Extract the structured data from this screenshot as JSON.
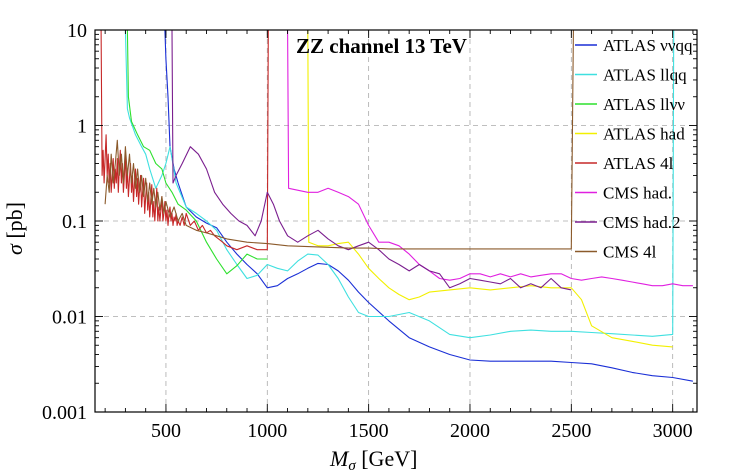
{
  "chart_data": {
    "type": "line",
    "title": "ZZ channel 13 TeV",
    "xlabel": "Mσ [GeV]",
    "xlabel_main": "M",
    "xlabel_sub": "σ",
    "xlabel_unit": " [GeV]",
    "ylabel": "σ [pb]",
    "ylabel_sym": "σ",
    "ylabel_unit": " [pb]",
    "xlim": [
      150,
      3120
    ],
    "ylim": [
      0.001,
      10
    ],
    "yscale": "log",
    "grid": true,
    "legend_position": "right",
    "xticks": [
      500,
      1000,
      1500,
      2000,
      2500,
      3000
    ],
    "xtick_labels": [
      "500",
      "1000",
      "1500",
      "2000",
      "2500",
      "3000"
    ],
    "yticks": [
      0.001,
      0.01,
      0.1,
      1,
      10
    ],
    "ytick_labels": [
      "0.001",
      "0.01",
      "0.1",
      "1",
      "10"
    ],
    "series": [
      {
        "name": "ATLAS ννqq",
        "color": "#1a2fd6",
        "x": [
          495,
          500,
          510,
          520,
          540,
          560,
          600,
          650,
          700,
          750,
          800,
          850,
          900,
          950,
          1000,
          1050,
          1100,
          1150,
          1200,
          1250,
          1300,
          1350,
          1400,
          1450,
          1500,
          1600,
          1700,
          1800,
          1900,
          2000,
          2100,
          2200,
          2300,
          2400,
          2500,
          2600,
          2700,
          2800,
          2900,
          3000,
          3100
        ],
        "y": [
          10,
          5,
          2,
          0.6,
          0.35,
          0.25,
          0.14,
          0.11,
          0.095,
          0.085,
          0.06,
          0.045,
          0.035,
          0.028,
          0.02,
          0.021,
          0.025,
          0.028,
          0.032,
          0.036,
          0.035,
          0.03,
          0.024,
          0.018,
          0.014,
          0.009,
          0.006,
          0.0048,
          0.004,
          0.0035,
          0.0034,
          0.0034,
          0.0034,
          0.0034,
          0.0033,
          0.0032,
          0.0029,
          0.0026,
          0.0024,
          0.0023,
          0.0021
        ]
      },
      {
        "name": "ATLAS llqq",
        "color": "#3fe0e0",
        "x": [
          300,
          310,
          320,
          350,
          380,
          400,
          420,
          450,
          480,
          500,
          520,
          550,
          600,
          650,
          700,
          750,
          800,
          850,
          900,
          950,
          1000,
          1050,
          1100,
          1150,
          1200,
          1250,
          1300,
          1350,
          1400,
          1450,
          1500,
          1600,
          1700,
          1800,
          1900,
          2000,
          2100,
          2200,
          2300,
          2400,
          2500,
          2600,
          2700,
          2800,
          2900,
          3000,
          3005
        ],
        "y": [
          10,
          1.5,
          1.2,
          0.8,
          0.6,
          0.5,
          0.35,
          0.22,
          0.3,
          0.4,
          0.6,
          0.25,
          0.14,
          0.12,
          0.1,
          0.08,
          0.05,
          0.035,
          0.025,
          0.027,
          0.035,
          0.032,
          0.03,
          0.038,
          0.045,
          0.044,
          0.035,
          0.025,
          0.016,
          0.011,
          0.01,
          0.01,
          0.011,
          0.009,
          0.0065,
          0.006,
          0.0064,
          0.007,
          0.0072,
          0.007,
          0.007,
          0.0068,
          0.0066,
          0.0064,
          0.0062,
          0.0065,
          10
        ]
      },
      {
        "name": "ATLAS llνν",
        "color": "#2de02d",
        "x": [
          310,
          315,
          330,
          360,
          390,
          420,
          450,
          480,
          500,
          530,
          560,
          600,
          650,
          700,
          750,
          800,
          850,
          900,
          950,
          1000
        ],
        "y": [
          10,
          2,
          1.1,
          0.8,
          0.6,
          0.55,
          0.4,
          0.35,
          0.25,
          0.2,
          0.15,
          0.13,
          0.1,
          0.06,
          0.04,
          0.028,
          0.034,
          0.045,
          0.04,
          0.04
        ]
      },
      {
        "name": "ATLAS had",
        "color": "#f2f000",
        "x": [
          1200,
          1205,
          1250,
          1300,
          1350,
          1400,
          1450,
          1500,
          1550,
          1600,
          1650,
          1700,
          1750,
          1800,
          1900,
          2000,
          2100,
          2200,
          2300,
          2400,
          2500,
          2550,
          2600,
          2700,
          2800,
          2900,
          3000
        ],
        "y": [
          10,
          0.06,
          0.055,
          0.055,
          0.058,
          0.06,
          0.045,
          0.032,
          0.025,
          0.02,
          0.017,
          0.015,
          0.016,
          0.018,
          0.019,
          0.02,
          0.019,
          0.02,
          0.021,
          0.02,
          0.02,
          0.015,
          0.008,
          0.006,
          0.0055,
          0.005,
          0.0048
        ]
      },
      {
        "name": "ATLAS 4l",
        "color": "#c62828",
        "x": [
          180,
          185,
          190,
          195,
          200,
          205,
          210,
          215,
          220,
          225,
          230,
          235,
          240,
          245,
          250,
          255,
          260,
          265,
          270,
          275,
          280,
          285,
          290,
          295,
          300,
          305,
          310,
          315,
          320,
          325,
          330,
          335,
          340,
          345,
          350,
          355,
          360,
          365,
          370,
          375,
          380,
          385,
          390,
          395,
          400,
          405,
          410,
          415,
          420,
          425,
          430,
          435,
          440,
          445,
          450,
          455,
          460,
          465,
          470,
          475,
          480,
          485,
          490,
          495,
          500,
          505,
          510,
          515,
          520,
          525,
          530,
          535,
          540,
          545,
          550,
          555,
          560,
          570,
          580,
          590,
          600,
          620,
          640,
          660,
          680,
          700,
          720,
          740,
          760,
          780,
          800,
          850,
          900,
          950,
          990,
          1000,
          1005
        ],
        "y": [
          10,
          0.3,
          0.55,
          0.25,
          0.45,
          0.8,
          0.3,
          0.5,
          0.25,
          0.4,
          0.2,
          0.3,
          0.45,
          0.22,
          0.35,
          0.25,
          0.45,
          0.2,
          0.35,
          0.55,
          0.25,
          0.4,
          0.2,
          0.3,
          0.5,
          0.22,
          0.35,
          0.18,
          0.28,
          0.4,
          0.2,
          0.3,
          0.16,
          0.25,
          0.35,
          0.18,
          0.28,
          0.15,
          0.22,
          0.3,
          0.14,
          0.2,
          0.28,
          0.12,
          0.18,
          0.25,
          0.13,
          0.2,
          0.11,
          0.16,
          0.24,
          0.11,
          0.16,
          0.1,
          0.15,
          0.22,
          0.1,
          0.14,
          0.1,
          0.13,
          0.18,
          0.1,
          0.12,
          0.16,
          0.1,
          0.13,
          0.09,
          0.12,
          0.14,
          0.1,
          0.12,
          0.09,
          0.11,
          0.1,
          0.12,
          0.09,
          0.1,
          0.09,
          0.11,
          0.09,
          0.12,
          0.09,
          0.1,
          0.08,
          0.09,
          0.075,
          0.08,
          0.07,
          0.065,
          0.06,
          0.055,
          0.05,
          0.055,
          0.05,
          0.05,
          0.05,
          10
        ]
      },
      {
        "name": "CMS had.",
        "color": "#e020e0",
        "x": [
          1100,
          1105,
          1200,
          1250,
          1300,
          1350,
          1400,
          1450,
          1500,
          1550,
          1600,
          1650,
          1700,
          1750,
          1800,
          1850,
          1900,
          1950,
          2000,
          2050,
          2100,
          2150,
          2200,
          2250,
          2300,
          2350,
          2400,
          2450,
          2500,
          2550,
          2600,
          2650,
          2700,
          2750,
          2800,
          2850,
          2900,
          2950,
          3000,
          3050,
          3100
        ],
        "y": [
          10,
          0.22,
          0.2,
          0.2,
          0.22,
          0.2,
          0.18,
          0.15,
          0.09,
          0.06,
          0.06,
          0.055,
          0.045,
          0.035,
          0.03,
          0.025,
          0.024,
          0.025,
          0.028,
          0.028,
          0.026,
          0.028,
          0.026,
          0.028,
          0.026,
          0.027,
          0.028,
          0.028,
          0.025,
          0.024,
          0.025,
          0.026,
          0.025,
          0.024,
          0.023,
          0.022,
          0.021,
          0.021,
          0.022,
          0.021,
          0.021
        ]
      },
      {
        "name": "CMS had.2",
        "color": "#7b1f8f",
        "x": [
          530,
          535,
          550,
          580,
          620,
          660,
          700,
          740,
          780,
          820,
          860,
          900,
          940,
          970,
          1000,
          1030,
          1060,
          1100,
          1150,
          1200,
          1250,
          1300,
          1350,
          1400,
          1450,
          1500,
          1550,
          1600,
          1650,
          1700,
          1750,
          1800,
          1850,
          1900,
          1950,
          2000,
          2050,
          2100,
          2150,
          2200,
          2250,
          2300,
          2350,
          2400,
          2450,
          2500
        ],
        "y": [
          10,
          0.25,
          0.3,
          0.4,
          0.6,
          0.5,
          0.35,
          0.2,
          0.15,
          0.12,
          0.1,
          0.09,
          0.07,
          0.1,
          0.2,
          0.15,
          0.1,
          0.07,
          0.06,
          0.07,
          0.08,
          0.065,
          0.055,
          0.05,
          0.055,
          0.06,
          0.05,
          0.04,
          0.035,
          0.03,
          0.035,
          0.03,
          0.028,
          0.02,
          0.022,
          0.025,
          0.024,
          0.023,
          0.022,
          0.025,
          0.02,
          0.022,
          0.02,
          0.025,
          0.02,
          0.019
        ]
      },
      {
        "name": "CMS 4l",
        "color": "#8b5a2b",
        "x": [
          200,
          210,
          220,
          230,
          240,
          250,
          260,
          270,
          280,
          290,
          300,
          310,
          320,
          330,
          340,
          350,
          360,
          370,
          380,
          390,
          400,
          410,
          420,
          430,
          440,
          450,
          460,
          470,
          480,
          490,
          500,
          520,
          540,
          560,
          580,
          600,
          650,
          700,
          750,
          800,
          900,
          1000,
          1100,
          1200,
          1300,
          1400,
          1500,
          1600,
          1700,
          1800,
          1900,
          2000,
          2100,
          2200,
          2300,
          2400,
          2500,
          2510
        ],
        "y": [
          0.15,
          0.3,
          0.2,
          0.5,
          0.25,
          0.4,
          0.7,
          0.3,
          0.5,
          0.25,
          0.6,
          0.3,
          0.5,
          0.25,
          0.4,
          0.22,
          0.35,
          0.2,
          0.3,
          0.18,
          0.28,
          0.16,
          0.25,
          0.15,
          0.22,
          0.14,
          0.2,
          0.13,
          0.18,
          0.12,
          0.16,
          0.11,
          0.14,
          0.1,
          0.12,
          0.09,
          0.08,
          0.075,
          0.07,
          0.065,
          0.06,
          0.058,
          0.055,
          0.054,
          0.053,
          0.052,
          0.052,
          0.051,
          0.051,
          0.051,
          0.051,
          0.051,
          0.051,
          0.051,
          0.051,
          0.051,
          0.051,
          10
        ]
      }
    ]
  }
}
